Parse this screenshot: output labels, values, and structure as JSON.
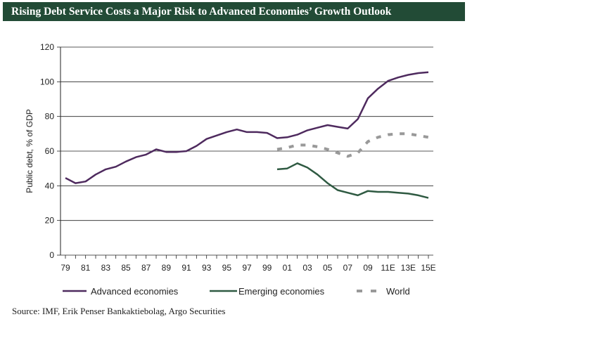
{
  "title": "Rising Debt Service Costs a Major Risk to Advanced Economies’ Growth Outlook",
  "source": "Source: IMF, Erik Penser Bankaktiebolag, Argo Securities",
  "chart_data": {
    "type": "line",
    "title": "Rising Debt Service Costs a Major Risk to Advanced Economies’ Growth Outlook",
    "xlabel": "",
    "ylabel": "Public debt, % of GDP",
    "ylim": [
      0,
      120
    ],
    "yticks": [
      "0",
      "20",
      "40",
      "60",
      "80",
      "100",
      "120"
    ],
    "xticks": [
      "79",
      "81",
      "83",
      "85",
      "87",
      "89",
      "91",
      "93",
      "95",
      "97",
      "99",
      "01",
      "03",
      "05",
      "07",
      "09",
      "11E",
      "13E",
      "15E"
    ],
    "x": [
      "1979",
      "1980",
      "1981",
      "1982",
      "1983",
      "1984",
      "1985",
      "1986",
      "1987",
      "1988",
      "1989",
      "1990",
      "1991",
      "1992",
      "1993",
      "1994",
      "1995",
      "1996",
      "1997",
      "1998",
      "1999",
      "2000",
      "2001",
      "2002",
      "2003",
      "2004",
      "2005",
      "2006",
      "2007",
      "2008",
      "2009",
      "2010",
      "2011",
      "2012",
      "2013",
      "2014",
      "2015"
    ],
    "grid": true,
    "legend_position": "bottom",
    "series": [
      {
        "name": "Advanced economies",
        "color": "#4e2a5e",
        "style": "solid",
        "values": [
          44.5,
          41.5,
          42.5,
          46.5,
          49.5,
          51,
          54,
          56.5,
          58,
          61,
          59.5,
          59.5,
          60,
          63,
          67,
          69,
          71,
          72.5,
          71,
          71,
          70.5,
          67.5,
          68,
          69.5,
          72,
          73.5,
          75,
          74,
          73,
          78.5,
          90.5,
          96,
          100.5,
          102.5,
          104,
          105,
          105.5
        ]
      },
      {
        "name": "Emerging economies",
        "color": "#2f5a42",
        "style": "solid",
        "values": [
          null,
          null,
          null,
          null,
          null,
          null,
          null,
          null,
          null,
          null,
          null,
          null,
          null,
          null,
          null,
          null,
          null,
          null,
          null,
          null,
          null,
          49.5,
          50,
          53,
          50.5,
          46.5,
          41.5,
          37.5,
          36,
          34.5,
          37,
          36.5,
          36.5,
          36,
          35.5,
          34.5,
          33
        ]
      },
      {
        "name": "World",
        "color": "#999999",
        "style": "dashed",
        "values": [
          null,
          null,
          null,
          null,
          null,
          null,
          null,
          null,
          null,
          null,
          null,
          null,
          null,
          null,
          null,
          null,
          null,
          null,
          null,
          null,
          null,
          61,
          62,
          63.5,
          63.5,
          62.5,
          61,
          59,
          57,
          59,
          65.5,
          68,
          69.5,
          70,
          70,
          69,
          68
        ]
      }
    ]
  }
}
